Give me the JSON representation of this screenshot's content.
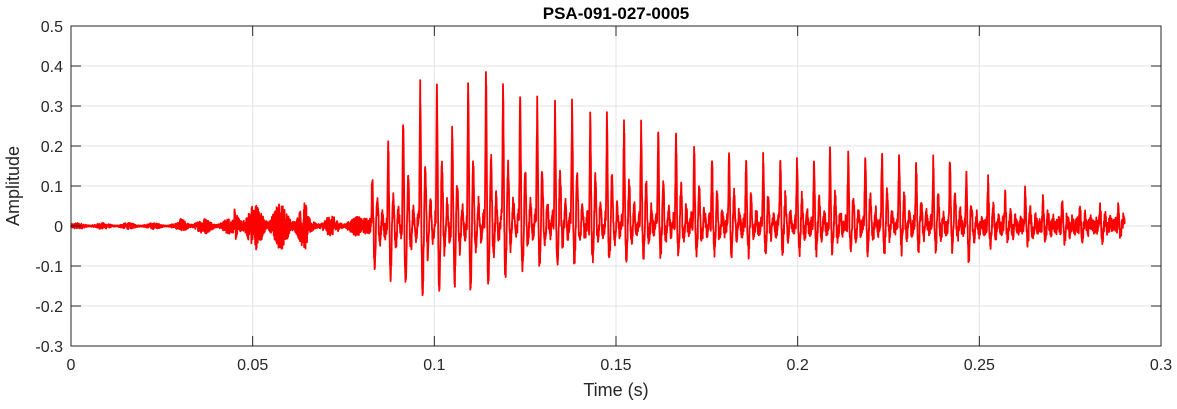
{
  "chart_data": {
    "type": "line",
    "title": "PSA-091-027-0005",
    "xlabel": "Time (s)",
    "ylabel": "Amplitude",
    "xlim": [
      0,
      0.3
    ],
    "ylim": [
      -0.3,
      0.5
    ],
    "xticks": [
      0,
      0.05,
      0.1,
      0.15,
      0.2,
      0.25,
      0.3
    ],
    "xtick_labels": [
      "0",
      "0.05",
      "0.1",
      "0.15",
      "0.2",
      "0.25",
      "0.3"
    ],
    "yticks": [
      -0.3,
      -0.2,
      -0.1,
      0,
      0.1,
      0.2,
      0.3,
      0.4,
      0.5
    ],
    "ytick_labels": [
      "-0.3",
      "-0.2",
      "-0.1",
      "0",
      "0.1",
      "0.2",
      "0.3",
      "0.4",
      "0.5"
    ],
    "grid": true,
    "line_color": "#ff0000",
    "signal_end": 0.29,
    "noise_segments": [
      {
        "t0": 0.0,
        "t1": 0.03,
        "amp": 0.008
      },
      {
        "t0": 0.03,
        "t1": 0.045,
        "amp": 0.02
      },
      {
        "t0": 0.045,
        "t1": 0.065,
        "amp": 0.06
      },
      {
        "t0": 0.065,
        "t1": 0.08,
        "amp": 0.025
      }
    ],
    "pulses": {
      "times": [
        0.0829,
        0.0873,
        0.0914,
        0.0961,
        0.1007,
        0.1049,
        0.1093,
        0.1142,
        0.1189,
        0.1236,
        0.1283,
        0.1332,
        0.1379,
        0.1429,
        0.1475,
        0.1522,
        0.1569,
        0.1616,
        0.1665,
        0.1715,
        0.1764,
        0.1811,
        0.1858,
        0.1905,
        0.1952,
        0.1998,
        0.2045,
        0.2089,
        0.2139,
        0.2186,
        0.2232,
        0.2279,
        0.2326,
        0.2373,
        0.2419,
        0.2464,
        0.2524,
        0.2571,
        0.2626,
        0.2675,
        0.2728,
        0.2777,
        0.2832,
        0.2882
      ],
      "peaks": [
        0.13,
        0.19,
        0.26,
        0.35,
        0.35,
        0.22,
        0.34,
        0.4,
        0.35,
        0.34,
        0.31,
        0.31,
        0.3,
        0.29,
        0.27,
        0.26,
        0.25,
        0.24,
        0.23,
        0.2,
        0.18,
        0.18,
        0.17,
        0.17,
        0.17,
        0.16,
        0.17,
        0.17,
        0.19,
        0.19,
        0.19,
        0.18,
        0.16,
        0.16,
        0.17,
        0.12,
        0.11,
        0.08,
        0.08,
        0.06,
        0.06,
        0.05,
        0.05,
        0.04
      ],
      "troughs": [
        -0.14,
        -0.18,
        -0.22,
        -0.26,
        -0.24,
        -0.2,
        -0.22,
        -0.24,
        -0.19,
        -0.17,
        -0.15,
        -0.15,
        -0.14,
        -0.13,
        -0.12,
        -0.12,
        -0.11,
        -0.11,
        -0.1,
        -0.1,
        -0.1,
        -0.1,
        -0.1,
        -0.09,
        -0.09,
        -0.09,
        -0.09,
        -0.09,
        -0.09,
        -0.09,
        -0.09,
        -0.09,
        -0.08,
        -0.08,
        -0.08,
        -0.12,
        -0.07,
        -0.06,
        -0.06,
        -0.05,
        -0.05,
        -0.04,
        -0.04,
        -0.03
      ]
    }
  }
}
